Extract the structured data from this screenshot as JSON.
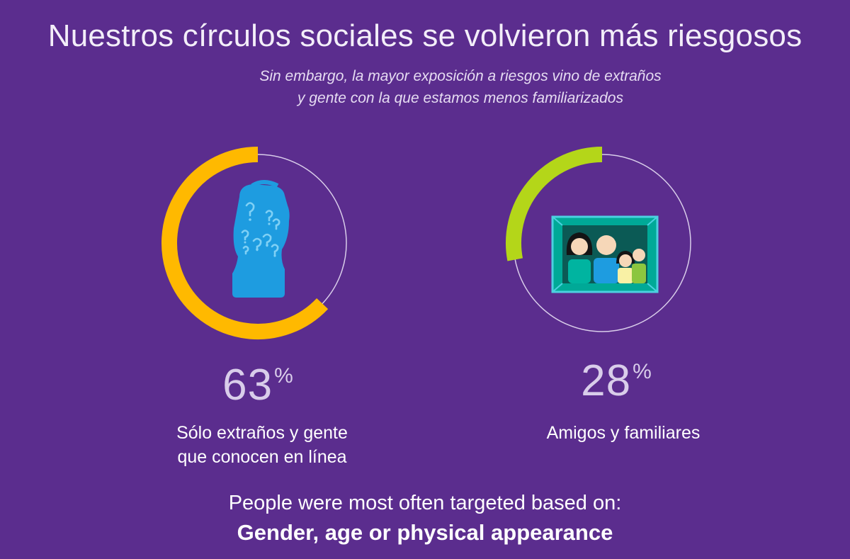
{
  "header": {
    "title": "Nuestros círculos sociales se volvieron más riesgosos",
    "subtitle_line1": "Sin embargo, la mayor exposición a riesgos vino de extraños",
    "subtitle_line2": "y gente con la que estamos menos familiarizados"
  },
  "chart_data": {
    "type": "donut",
    "items": [
      {
        "value": 63,
        "value_label": "63",
        "unit": "%",
        "label_line1": "Sólo extraños y gente",
        "label_line2": "que conocen en línea",
        "color": "#ffb900",
        "icon": "stranger-head-icon"
      },
      {
        "value": 28,
        "value_label": "28",
        "unit": "%",
        "label_line1": "Amigos y familiares",
        "label_line2": "",
        "color": "#b4d619",
        "icon": "family-photo-icon"
      }
    ],
    "track_color": "#d9cdea"
  },
  "footer": {
    "line1": "People were most often targeted based on:",
    "line2": "Gender, age or physical appearance"
  }
}
